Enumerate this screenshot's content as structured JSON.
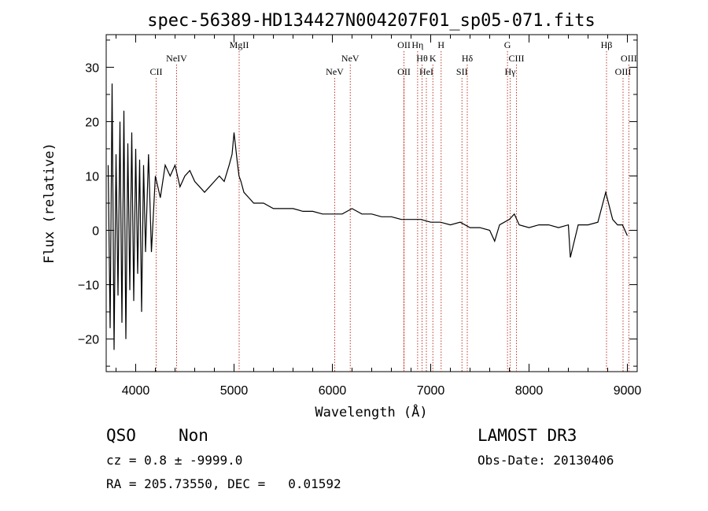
{
  "chart_data": {
    "type": "line",
    "title": "spec-56389-HD134427N004207F01_sp05-071.fits",
    "xlabel": "Wavelength (Å)",
    "ylabel": "Flux (relative)",
    "xlim": [
      3700,
      9100
    ],
    "ylim": [
      -26,
      36
    ],
    "xticks": [
      4000,
      5000,
      6000,
      7000,
      8000,
      9000
    ],
    "yticks": [
      -20,
      -10,
      0,
      10,
      20,
      30
    ],
    "grid": false,
    "line_color": "#000000",
    "marker_line_color": "#c0392b",
    "series": [
      {
        "x": [
          3720,
          3740,
          3760,
          3780,
          3800,
          3820,
          3840,
          3860,
          3880,
          3900,
          3920,
          3940,
          3960,
          3980,
          4000,
          4020,
          4040,
          4060,
          4080,
          4100,
          4130,
          4160,
          4200,
          4250,
          4300,
          4350,
          4400,
          4450,
          4500,
          4550,
          4600,
          4650,
          4700,
          4750,
          4800,
          4850,
          4900,
          4950,
          4980,
          5000,
          5030,
          5050,
          5070,
          5100,
          5150,
          5200,
          5300,
          5400,
          5500,
          5600,
          5700,
          5800,
          5900,
          6000,
          6100,
          6200,
          6300,
          6400,
          6500,
          6600,
          6700,
          6800,
          6900,
          7000,
          7100,
          7200,
          7300,
          7400,
          7500,
          7600,
          7650,
          7700,
          7800,
          7850,
          7900,
          8000,
          8100,
          8200,
          8300,
          8400,
          8420,
          8500,
          8600,
          8700,
          8780,
          8850,
          8900,
          8950,
          9000
        ],
        "y": [
          12,
          -18,
          27,
          -22,
          14,
          -12,
          20,
          -17,
          22,
          -20,
          16,
          -11,
          18,
          -13,
          15,
          -8,
          13,
          -15,
          12,
          -4,
          14,
          -4,
          10,
          6,
          12,
          10,
          12,
          8,
          10,
          11,
          9,
          8,
          7,
          8,
          9,
          10,
          9,
          12,
          14,
          18,
          13,
          10,
          9,
          7,
          6,
          5,
          5,
          4,
          4,
          4,
          3.5,
          3.5,
          3,
          3,
          3,
          4,
          3,
          3,
          2.5,
          2.5,
          2,
          2,
          2,
          1.5,
          1.5,
          1,
          1.5,
          0.5,
          0.5,
          0,
          -2,
          1,
          2,
          3,
          1,
          0.5,
          1,
          1,
          0.5,
          1,
          -5,
          1,
          1,
          1.5,
          7,
          2,
          1,
          1,
          -1
        ]
      }
    ],
    "line_markers": [
      {
        "x": 4208,
        "label": "CII",
        "row": 2
      },
      {
        "x": 4416,
        "label": "NeIV",
        "row": 1
      },
      {
        "x": 5052,
        "label": "MgII",
        "row": 0
      },
      {
        "x": 6024,
        "label": "NeV",
        "row": 2
      },
      {
        "x": 6182,
        "label": "NeV",
        "row": 1
      },
      {
        "x": 6728,
        "label": "OII",
        "row": 0
      },
      {
        "x": 6728,
        "label": "OII",
        "row": 2
      },
      {
        "x": 6867,
        "label": "Hη",
        "row": 0
      },
      {
        "x": 6912,
        "label": "Hθ",
        "row": 1
      },
      {
        "x": 6956,
        "label": "HeI",
        "row": 2
      },
      {
        "x": 7022,
        "label": "K",
        "row": 1
      },
      {
        "x": 7106,
        "label": "H",
        "row": 0
      },
      {
        "x": 7318,
        "label": "SII",
        "row": 2
      },
      {
        "x": 7372,
        "label": "Hδ",
        "row": 1
      },
      {
        "x": 7781,
        "label": "G",
        "row": 0
      },
      {
        "x": 7808,
        "label": "Hγ",
        "row": 2
      },
      {
        "x": 7872,
        "label": "CIII",
        "row": 1
      },
      {
        "x": 8788,
        "label": "Hβ",
        "row": 0
      },
      {
        "x": 8956,
        "label": "OIII",
        "row": 2
      },
      {
        "x": 9015,
        "label": "OIII",
        "row": 1
      }
    ]
  },
  "info": {
    "class": "QSO",
    "subclass": "Non",
    "survey": "LAMOST DR3",
    "cz": "cz = 0.8 ± -9999.0",
    "obs_date": "Obs-Date: 20130406",
    "coords": "RA = 205.73550, DEC =   0.01592"
  }
}
